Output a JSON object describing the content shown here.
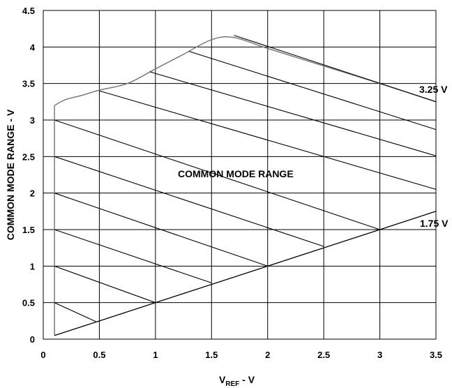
{
  "chart_data": {
    "type": "line",
    "title": "",
    "xlabel": {
      "main": "V",
      "sub": "REF",
      "suffix": " - V"
    },
    "ylabel": "COMMON MODE RANGE - V",
    "xlim": [
      0,
      3.5
    ],
    "ylim": [
      0,
      4.5
    ],
    "grid": true,
    "x_ticks": [
      "0",
      "0.5",
      "1",
      "1.5",
      "2",
      "2.5",
      "3",
      "3.5"
    ],
    "y_ticks": [
      "0",
      "0.5",
      "1",
      "1.5",
      "2",
      "2.5",
      "3",
      "3.5",
      "4",
      "4.5"
    ],
    "x_tick_values": [
      0,
      0.5,
      1,
      1.5,
      2,
      2.5,
      3,
      3.5
    ],
    "y_tick_values": [
      0,
      0.5,
      1,
      1.5,
      2,
      2.5,
      3,
      3.5,
      4,
      4.5
    ],
    "annotations": {
      "region": "COMMON MODE RANGE",
      "upper": "3.25 V",
      "lower": "1.75 V"
    },
    "upper_boundary": {
      "x": [
        0.1,
        0.2,
        0.35,
        0.5,
        0.75,
        1.0,
        1.25,
        1.5,
        1.7,
        2.0,
        2.5,
        3.0,
        3.5
      ],
      "y": [
        3.2,
        3.28,
        3.34,
        3.41,
        3.5,
        3.7,
        3.9,
        4.1,
        4.13,
        3.98,
        3.74,
        3.5,
        3.25
      ]
    },
    "lower_boundary": {
      "x": [
        0.1,
        3.5
      ],
      "y": [
        0.05,
        1.75
      ]
    },
    "left_boundary": {
      "x": [
        0.1,
        0.1
      ],
      "y": [
        0.05,
        3.2
      ]
    },
    "hatch_lines": [
      {
        "x": [
          0.1,
          0.47
        ],
        "y": [
          0.5,
          0.24
        ]
      },
      {
        "x": [
          0.1,
          1.0
        ],
        "y": [
          1.0,
          0.5
        ]
      },
      {
        "x": [
          0.1,
          1.5
        ],
        "y": [
          1.5,
          0.77
        ]
      },
      {
        "x": [
          0.1,
          2.0
        ],
        "y": [
          2.0,
          1.0
        ]
      },
      {
        "x": [
          0.1,
          2.5
        ],
        "y": [
          2.5,
          1.27
        ]
      },
      {
        "x": [
          0.1,
          3.0
        ],
        "y": [
          3.0,
          1.5
        ]
      },
      {
        "x": [
          0.5,
          3.5
        ],
        "y": [
          3.4,
          2.05
        ]
      },
      {
        "x": [
          0.95,
          3.5
        ],
        "y": [
          3.66,
          2.51
        ]
      },
      {
        "x": [
          1.3,
          3.5
        ],
        "y": [
          3.94,
          2.87
        ]
      },
      {
        "x": [
          1.7,
          3.5
        ],
        "y": [
          4.16,
          3.25
        ]
      }
    ]
  }
}
